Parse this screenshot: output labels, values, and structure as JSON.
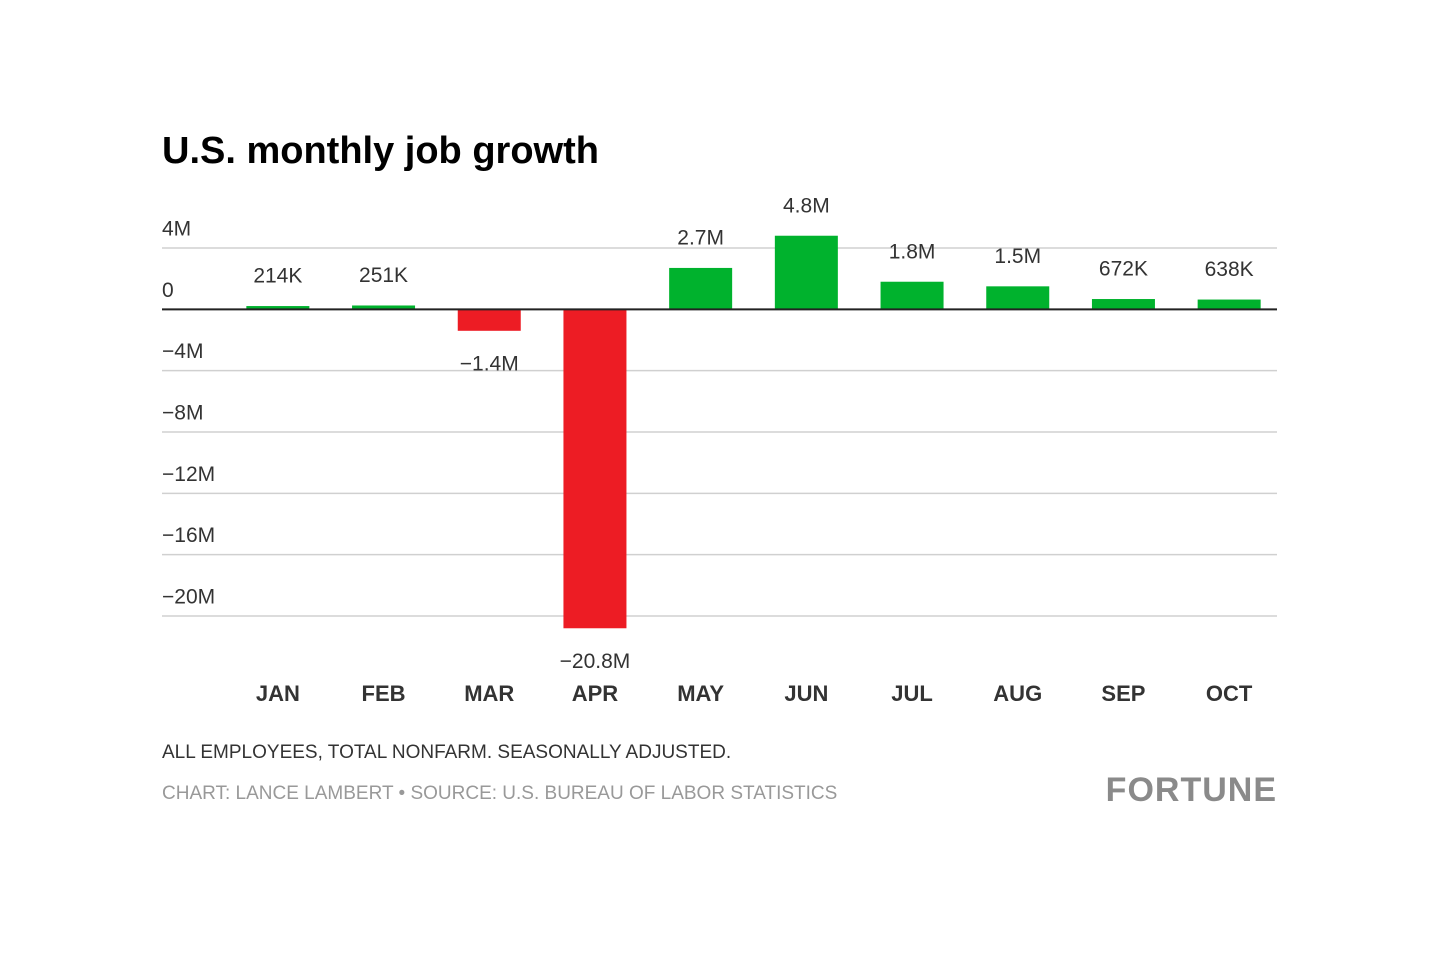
{
  "chart_data": {
    "type": "bar",
    "title": "U.S. monthly job growth",
    "categories": [
      "JAN",
      "FEB",
      "MAR",
      "APR",
      "MAY",
      "JUN",
      "JUL",
      "AUG",
      "SEP",
      "OCT"
    ],
    "values": [
      214000,
      251000,
      -1400000,
      -20800000,
      2700000,
      4800000,
      1800000,
      1500000,
      672000,
      638000
    ],
    "value_labels": [
      "214K",
      "251K",
      "−1.4M",
      "−20.8M",
      "2.7M",
      "4.8M",
      "1.8M",
      "1.5M",
      "672K",
      "638K"
    ],
    "positive_color": "#00b22d",
    "negative_color": "#ed1c24",
    "ylim": [
      -20000000,
      4000000
    ],
    "yticks": [
      {
        "value": 4000000,
        "label": "4M"
      },
      0,
      {
        "value": -4000000,
        "label": "−4M"
      },
      {
        "value": -8000000,
        "label": "−8M"
      },
      {
        "value": -12000000,
        "label": "−12M"
      },
      {
        "value": -16000000,
        "label": "−16M"
      },
      {
        "value": -20000000,
        "label": "−20M"
      }
    ],
    "grid": true,
    "note": "ALL EMPLOYEES, TOTAL NONFARM. SEASONALLY ADJUSTED.",
    "source": "CHART: LANCE LAMBERT • SOURCE: U.S. BUREAU OF LABOR STATISTICS",
    "logo": "FORTUNE"
  }
}
